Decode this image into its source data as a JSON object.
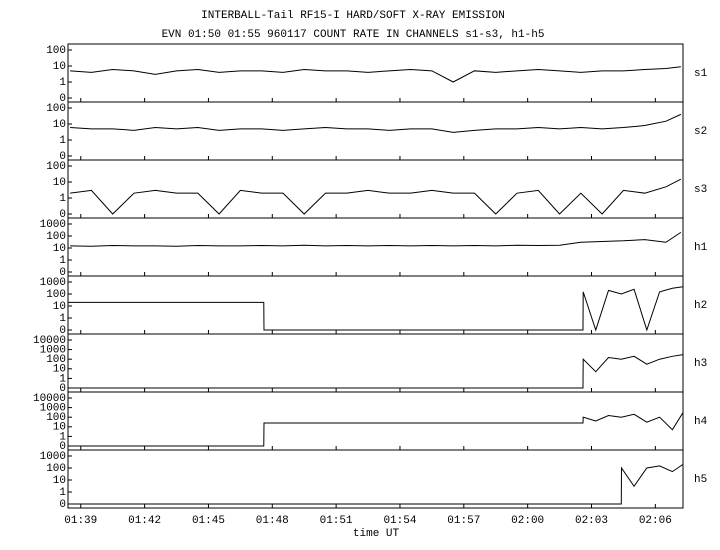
{
  "chart_data": {
    "type": "line",
    "title": "INTERBALL-Tail RF15-I HARD/SOFT X-RAY EMISSION",
    "subtitle": "EVN 01:50 01:55 960117  COUNT RATE IN CHANNELS s1-s3, h1-h5",
    "xlabel": "time UT",
    "yscale": "log",
    "color": "#000000",
    "xlim": [
      98.4,
      127.3
    ],
    "xticks": [
      {
        "value": 99,
        "label": "01:39"
      },
      {
        "value": 102,
        "label": "01:42"
      },
      {
        "value": 105,
        "label": "01:45"
      },
      {
        "value": 108,
        "label": "01:48"
      },
      {
        "value": 111,
        "label": "01:51"
      },
      {
        "value": 114,
        "label": "01:54"
      },
      {
        "value": 117,
        "label": "01:57"
      },
      {
        "value": 120,
        "label": "02:00"
      },
      {
        "value": 123,
        "label": "02:03"
      },
      {
        "value": 126,
        "label": "02:06"
      }
    ],
    "panels": [
      {
        "name": "s1",
        "ylim": [
          0,
          100
        ],
        "yticks": [
          0,
          1,
          10,
          100
        ],
        "x": [
          98.5,
          99.5,
          100.5,
          101.5,
          102.5,
          103.5,
          104.5,
          105.5,
          106.5,
          107.5,
          108.5,
          109.5,
          110.5,
          111.5,
          112.5,
          113.5,
          114.5,
          115.5,
          116.5,
          117.5,
          118.5,
          119.5,
          120.5,
          121.5,
          122.5,
          123.5,
          124.5,
          125.5,
          126.5,
          127.2
        ],
        "values": [
          5,
          4,
          6,
          5,
          3,
          5,
          6,
          4,
          5,
          5,
          4,
          6,
          5,
          5,
          4,
          5,
          6,
          5,
          1,
          5,
          4,
          5,
          6,
          5,
          4,
          5,
          5,
          6,
          7,
          9
        ]
      },
      {
        "name": "s2",
        "ylim": [
          0,
          100
        ],
        "yticks": [
          0,
          1,
          10,
          100
        ],
        "x": [
          98.5,
          99.5,
          100.5,
          101.5,
          102.5,
          103.5,
          104.5,
          105.5,
          106.5,
          107.5,
          108.5,
          109.5,
          110.5,
          111.5,
          112.5,
          113.5,
          114.5,
          115.5,
          116.5,
          117.5,
          118.5,
          119.5,
          120.5,
          121.5,
          122.5,
          123.5,
          124.5,
          125.5,
          126.5,
          127.2
        ],
        "values": [
          6,
          5,
          5,
          4,
          6,
          5,
          6,
          4,
          5,
          5,
          4,
          5,
          6,
          5,
          5,
          4,
          5,
          5,
          3,
          4,
          5,
          5,
          6,
          5,
          6,
          5,
          6,
          8,
          15,
          40
        ]
      },
      {
        "name": "s3",
        "ylim": [
          0,
          100
        ],
        "yticks": [
          0,
          1,
          10,
          100
        ],
        "x": [
          98.5,
          99.5,
          100.5,
          101.5,
          102.5,
          103.5,
          104.5,
          105.5,
          106.5,
          107.5,
          108.5,
          109.5,
          110.5,
          111.5,
          112.5,
          113.5,
          114.5,
          115.5,
          116.5,
          117.5,
          118.5,
          119.5,
          120.5,
          121.5,
          122.5,
          123.5,
          124.5,
          125.5,
          126.5,
          127.2
        ],
        "values": [
          2,
          3,
          0,
          2,
          3,
          2,
          2,
          0,
          3,
          2,
          2,
          0,
          2,
          2,
          3,
          2,
          2,
          3,
          2,
          2,
          0,
          2,
          3,
          0,
          2,
          0,
          3,
          2,
          5,
          15
        ]
      },
      {
        "name": "h1",
        "ylim": [
          0,
          1000
        ],
        "yticks": [
          0,
          1,
          10,
          100,
          1000
        ],
        "x": [
          98.5,
          99.5,
          100.5,
          101.5,
          102.5,
          103.5,
          104.5,
          105.5,
          106.5,
          107.5,
          108.5,
          109.5,
          110.5,
          111.5,
          112.5,
          113.5,
          114.5,
          115.5,
          116.5,
          117.5,
          118.5,
          119.5,
          120.5,
          121.5,
          122.5,
          123.5,
          124.5,
          125.5,
          126.5,
          127.2
        ],
        "values": [
          15,
          14,
          16,
          15,
          15,
          14,
          16,
          15,
          15,
          16,
          15,
          17,
          15,
          16,
          15,
          16,
          15,
          16,
          15,
          16,
          15,
          17,
          16,
          17,
          30,
          35,
          40,
          50,
          30,
          200
        ]
      },
      {
        "name": "h2",
        "ylim": [
          0,
          1000
        ],
        "yticks": [
          0,
          1,
          10,
          100,
          1000
        ],
        "x": [
          98.4,
          107.6,
          107.61,
          122.6,
          122.61,
          123.2,
          123.8,
          124.4,
          125,
          125.6,
          126.2,
          126.8,
          127.3
        ],
        "values": [
          20,
          20,
          0,
          0,
          150,
          0,
          200,
          100,
          250,
          0,
          150,
          300,
          400
        ]
      },
      {
        "name": "h3",
        "ylim": [
          0,
          10000
        ],
        "yticks": [
          0,
          1,
          10,
          100,
          1000,
          10000
        ],
        "x": [
          98.4,
          122.6,
          122.61,
          123.2,
          123.8,
          124.4,
          125,
          125.6,
          126.2,
          126.8,
          127.3
        ],
        "values": [
          0,
          0,
          100,
          5,
          150,
          100,
          200,
          30,
          100,
          200,
          300
        ]
      },
      {
        "name": "h4",
        "ylim": [
          0,
          10000
        ],
        "yticks": [
          0,
          1,
          10,
          100,
          1000,
          10000
        ],
        "x": [
          98.4,
          107.6,
          107.61,
          122.6,
          122.61,
          123.2,
          123.8,
          124.4,
          125,
          125.6,
          126.2,
          126.8,
          127.3
        ],
        "values": [
          0,
          0,
          25,
          25,
          100,
          40,
          150,
          100,
          200,
          30,
          100,
          5,
          300
        ]
      },
      {
        "name": "h5",
        "ylim": [
          0,
          1000
        ],
        "yticks": [
          0,
          1,
          10,
          100,
          1000
        ],
        "x": [
          98.4,
          124.4,
          124.41,
          125,
          125.6,
          126.2,
          126.8,
          127.3
        ],
        "values": [
          0,
          0,
          100,
          3,
          100,
          150,
          50,
          200
        ]
      }
    ]
  }
}
